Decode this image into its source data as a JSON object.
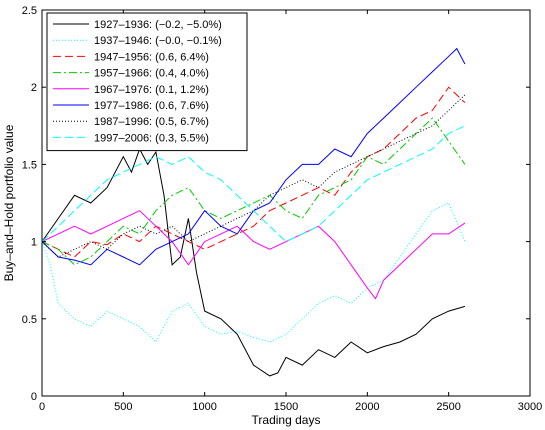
{
  "chart_data": {
    "type": "line",
    "xlabel": "Trading days",
    "ylabel": "Buy–and–Hold portfolio value",
    "xlim": [
      0,
      3000
    ],
    "ylim": [
      0,
      2.5
    ],
    "xticks": [
      "0",
      "500",
      "1000",
      "1500",
      "2000",
      "2500",
      "3000"
    ],
    "yticks": [
      "0",
      "0.5",
      "1",
      "1.5",
      "2",
      "2.5"
    ],
    "legend_position": "top-left",
    "grid": false,
    "series": [
      {
        "name": "1927–1936:  (−0.2, −5.0%)",
        "color": "#000000",
        "dash": "solid",
        "x": [
          0,
          100,
          200,
          300,
          400,
          500,
          550,
          600,
          650,
          700,
          750,
          800,
          850,
          900,
          950,
          1000,
          1100,
          1200,
          1300,
          1400,
          1450,
          1500,
          1600,
          1700,
          1800,
          1900,
          2000,
          2100,
          2200,
          2300,
          2400,
          2500,
          2600
        ],
        "y": [
          1.0,
          1.15,
          1.3,
          1.25,
          1.35,
          1.55,
          1.45,
          1.6,
          1.5,
          1.58,
          1.3,
          0.85,
          0.9,
          1.15,
          0.8,
          0.55,
          0.5,
          0.4,
          0.2,
          0.13,
          0.15,
          0.25,
          0.2,
          0.3,
          0.25,
          0.35,
          0.28,
          0.32,
          0.35,
          0.4,
          0.5,
          0.55,
          0.58
        ]
      },
      {
        "name": "1937–1946:  (−0.0, −0.1%)",
        "color": "#00ffff",
        "dash": "1,2",
        "x": [
          0,
          50,
          100,
          200,
          300,
          400,
          500,
          600,
          700,
          800,
          900,
          1000,
          1100,
          1200,
          1300,
          1400,
          1500,
          1600,
          1700,
          1800,
          1900,
          2000,
          2100,
          2200,
          2300,
          2400,
          2500,
          2600
        ],
        "y": [
          1.0,
          0.85,
          0.6,
          0.5,
          0.45,
          0.55,
          0.5,
          0.45,
          0.35,
          0.55,
          0.6,
          0.45,
          0.4,
          0.42,
          0.38,
          0.35,
          0.4,
          0.5,
          0.6,
          0.65,
          0.6,
          0.7,
          0.75,
          0.9,
          1.05,
          1.2,
          1.25,
          1.0
        ]
      },
      {
        "name": "1947–1956:  (0.6, 6.4%)",
        "color": "#ff0000",
        "dash": "8,4",
        "x": [
          0,
          100,
          200,
          300,
          400,
          500,
          600,
          700,
          800,
          900,
          1000,
          1100,
          1200,
          1300,
          1400,
          1500,
          1600,
          1700,
          1800,
          1900,
          2000,
          2100,
          2200,
          2300,
          2400,
          2500,
          2600
        ],
        "y": [
          1.0,
          0.95,
          0.9,
          1.0,
          0.98,
          1.05,
          1.0,
          1.1,
          1.05,
          1.0,
          0.95,
          1.0,
          1.05,
          1.1,
          1.2,
          1.25,
          1.3,
          1.35,
          1.3,
          1.45,
          1.55,
          1.6,
          1.7,
          1.8,
          1.85,
          2.0,
          1.9
        ]
      },
      {
        "name": "1957–1966:  (0.4, 4.0%)",
        "color": "#00cc00",
        "dash": "8,3,2,3",
        "x": [
          0,
          100,
          200,
          300,
          400,
          500,
          600,
          700,
          800,
          900,
          1000,
          1100,
          1200,
          1300,
          1400,
          1500,
          1600,
          1700,
          1800,
          1900,
          2000,
          2100,
          2200,
          2300,
          2400,
          2500,
          2600
        ],
        "y": [
          1.0,
          0.95,
          0.85,
          0.9,
          1.0,
          1.1,
          1.05,
          1.2,
          1.3,
          1.35,
          1.2,
          1.15,
          1.2,
          1.25,
          1.3,
          1.2,
          1.15,
          1.3,
          1.35,
          1.4,
          1.55,
          1.5,
          1.6,
          1.7,
          1.8,
          1.65,
          1.5
        ]
      },
      {
        "name": "1967–1976:  (0.1, 1.2%)",
        "color": "#ff00ff",
        "dash": "solid",
        "x": [
          0,
          100,
          200,
          300,
          400,
          500,
          600,
          700,
          800,
          900,
          1000,
          1100,
          1200,
          1300,
          1400,
          1500,
          1600,
          1700,
          1800,
          1900,
          2000,
          2050,
          2100,
          2200,
          2300,
          2400,
          2500,
          2600
        ],
        "y": [
          1.0,
          1.05,
          1.1,
          1.05,
          1.1,
          1.15,
          1.2,
          1.1,
          1.0,
          0.85,
          1.0,
          1.05,
          1.1,
          1.0,
          0.95,
          1.0,
          1.05,
          1.1,
          1.0,
          0.85,
          0.7,
          0.63,
          0.75,
          0.85,
          0.95,
          1.05,
          1.05,
          1.12
        ]
      },
      {
        "name": "1977–1986:  (0.6, 7.6%)",
        "color": "#0000ff",
        "dash": "solid",
        "x": [
          0,
          100,
          200,
          300,
          400,
          500,
          600,
          700,
          800,
          900,
          1000,
          1100,
          1200,
          1300,
          1400,
          1500,
          1600,
          1700,
          1800,
          1900,
          2000,
          2100,
          2200,
          2300,
          2400,
          2500,
          2550,
          2600
        ],
        "y": [
          1.0,
          0.9,
          0.88,
          0.85,
          0.95,
          0.9,
          0.85,
          0.95,
          1.0,
          1.05,
          1.2,
          1.1,
          1.05,
          1.2,
          1.25,
          1.4,
          1.5,
          1.5,
          1.6,
          1.55,
          1.7,
          1.8,
          1.9,
          2.0,
          2.1,
          2.2,
          2.25,
          2.15
        ]
      },
      {
        "name": "1987–1996:  (0.5, 6.7%)",
        "color": "#000000",
        "dash": "1,2",
        "x": [
          0,
          100,
          200,
          300,
          400,
          500,
          600,
          700,
          800,
          900,
          1000,
          1100,
          1200,
          1300,
          1400,
          1500,
          1600,
          1700,
          1800,
          1900,
          2000,
          2100,
          2200,
          2300,
          2400,
          2500,
          2600
        ],
        "y": [
          1.0,
          0.9,
          0.95,
          1.0,
          0.95,
          1.05,
          1.1,
          1.05,
          1.1,
          1.0,
          1.05,
          1.1,
          1.15,
          1.2,
          1.3,
          1.35,
          1.4,
          1.35,
          1.45,
          1.5,
          1.55,
          1.6,
          1.65,
          1.7,
          1.75,
          1.85,
          1.95
        ]
      },
      {
        "name": "1997–2006:  (0.3, 5.5%)",
        "color": "#00ffff",
        "dash": "8,4",
        "x": [
          0,
          100,
          200,
          300,
          400,
          500,
          600,
          700,
          800,
          900,
          1000,
          1100,
          1200,
          1300,
          1400,
          1500,
          1600,
          1700,
          1800,
          1900,
          2000,
          2100,
          2200,
          2300,
          2400,
          2500,
          2600
        ],
        "y": [
          1.0,
          1.1,
          1.2,
          1.3,
          1.4,
          1.45,
          1.5,
          1.55,
          1.5,
          1.55,
          1.45,
          1.4,
          1.3,
          1.2,
          1.1,
          1.0,
          1.05,
          1.1,
          1.2,
          1.3,
          1.4,
          1.45,
          1.5,
          1.55,
          1.6,
          1.7,
          1.75
        ]
      }
    ]
  }
}
